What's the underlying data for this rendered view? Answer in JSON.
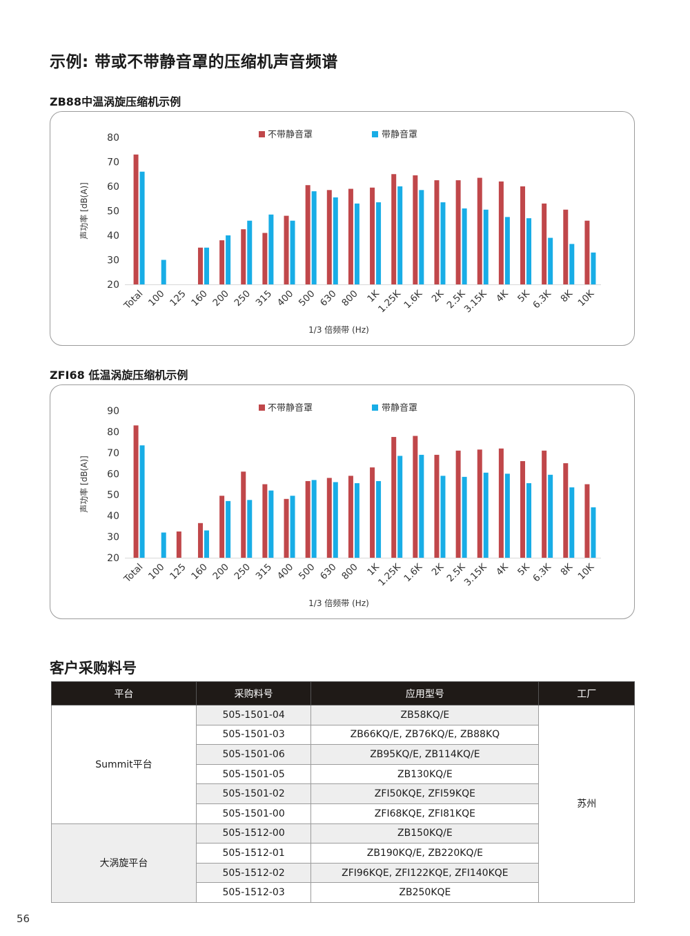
{
  "page": {
    "title": "示例: 带或不带静音罩的压缩机声音频谱",
    "number": "56"
  },
  "colors": {
    "no_enclosure": "#c0474a",
    "with_enclosure": "#18ade6",
    "table_header": "#1f1a17"
  },
  "charts_meta": [
    {
      "title": "ZB88中温涡旋压缩机示例"
    },
    {
      "title": "ZFI68 低温涡旋压缩机示例"
    }
  ],
  "chart_data": [
    {
      "type": "bar",
      "categories": [
        "Total",
        "100",
        "125",
        "160",
        "200",
        "250",
        "315",
        "400",
        "500",
        "630",
        "800",
        "1K",
        "1.25K",
        "1.6K",
        "2K",
        "2.5K",
        "3.15K",
        "4K",
        "5K",
        "6.3K",
        "8K",
        "10K"
      ],
      "series": [
        {
          "name": "不带静音罩",
          "values": [
            73,
            null,
            null,
            35,
            38,
            42.5,
            41,
            48,
            60.5,
            58.5,
            59,
            59.5,
            65,
            64.5,
            62.5,
            62.5,
            63.5,
            62,
            60,
            53,
            50.5,
            46
          ]
        },
        {
          "name": "带静音罩",
          "values": [
            66,
            30,
            null,
            35,
            40,
            46,
            48.5,
            46,
            58,
            55.5,
            53,
            53.5,
            60,
            58.5,
            53.5,
            51,
            50.5,
            47.5,
            47,
            39,
            36.5,
            33
          ]
        }
      ],
      "ylabel": "声功率 [dB(A)]",
      "xlabel": "1/3 倍频带 (Hz)",
      "ylim": [
        20,
        80
      ],
      "yticks": [
        "80",
        "70",
        "60",
        "50",
        "40",
        "30",
        "20"
      ],
      "legend": "top-center",
      "grid": false
    },
    {
      "type": "bar",
      "categories": [
        "Total",
        "100",
        "125",
        "160",
        "200",
        "250",
        "315",
        "400",
        "500",
        "630",
        "800",
        "1K",
        "1.25K",
        "1.6K",
        "2K",
        "2.5K",
        "3.15K",
        "4K",
        "5K",
        "6.3K",
        "8K",
        "10K"
      ],
      "series": [
        {
          "name": "不带静音罩",
          "values": [
            83,
            null,
            32.5,
            36.5,
            49.5,
            61,
            55,
            48,
            56.5,
            58,
            59,
            63,
            77.5,
            78,
            69,
            71,
            71.5,
            72,
            66,
            71,
            65,
            55
          ]
        },
        {
          "name": "带静音罩",
          "values": [
            73.5,
            32,
            null,
            33,
            47,
            47.5,
            52,
            49.5,
            57,
            56,
            55.5,
            56.5,
            68.5,
            69,
            59,
            58.5,
            60.5,
            60,
            55.5,
            59.5,
            53.5,
            44
          ]
        }
      ],
      "ylabel": "声功率 [dB(A)]",
      "xlabel": "1/3 倍频带 (Hz)",
      "ylim": [
        20,
        90
      ],
      "yticks": [
        "90",
        "80",
        "70",
        "60",
        "50",
        "40",
        "30",
        "20"
      ],
      "legend": "top-center",
      "grid": false
    }
  ],
  "parts": {
    "section_title": "客户采购料号",
    "headers": [
      "平台",
      "采购料号",
      "应用型号",
      "工厂"
    ],
    "platform_a": "Summit平台",
    "platform_b": "大涡旋平台",
    "factory": "苏州",
    "rows": [
      {
        "part": "505-1501-04",
        "models": "ZB58KQ/E"
      },
      {
        "part": "505-1501-03",
        "models": "ZB66KQ/E, ZB76KQ/E, ZB88KQ"
      },
      {
        "part": "505-1501-06",
        "models": "ZB95KQ/E, ZB114KQ/E"
      },
      {
        "part": "505-1501-05",
        "models": "ZB130KQ/E"
      },
      {
        "part": "505-1501-02",
        "models": "ZFI50KQE, ZFI59KQE"
      },
      {
        "part": "505-1501-00",
        "models": "ZFI68KQE, ZFI81KQE"
      },
      {
        "part": "505-1512-00",
        "models": "ZB150KQ/E"
      },
      {
        "part": "505-1512-01",
        "models": "ZB190KQ/E, ZB220KQ/E"
      },
      {
        "part": "505-1512-02",
        "models": "ZFI96KQE, ZFI122KQE, ZFI140KQE"
      },
      {
        "part": "505-1512-03",
        "models": "ZB250KQE"
      }
    ]
  }
}
